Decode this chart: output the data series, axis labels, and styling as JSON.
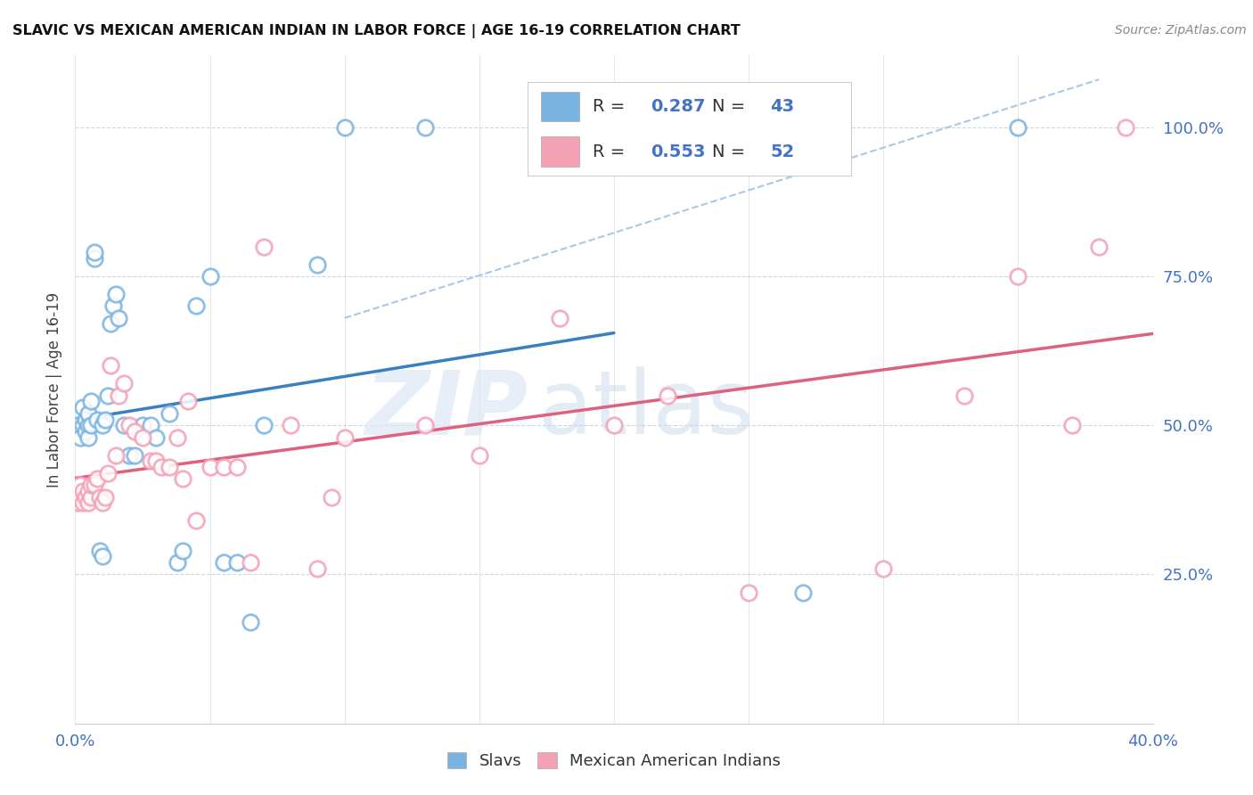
{
  "title": "SLAVIC VS MEXICAN AMERICAN INDIAN IN LABOR FORCE | AGE 16-19 CORRELATION CHART",
  "source": "Source: ZipAtlas.com",
  "ylabel": "In Labor Force | Age 16-19",
  "slavs_color": "#7ab3e0",
  "mexican_color": "#f4a0b5",
  "slavs_line_color": "#3a7fc1",
  "mexican_line_color": "#e06080",
  "ref_line_color": "#a8c8e8",
  "slavs_R": 0.287,
  "slavs_N": 43,
  "mexican_R": 0.553,
  "mexican_N": 52,
  "watermark_zip": "ZIP",
  "watermark_atlas": "atlas",
  "xlim": [
    0.0,
    0.4
  ],
  "ylim": [
    0.0,
    1.12
  ],
  "ytick_vals": [
    0.25,
    0.5,
    0.75,
    1.0
  ],
  "ytick_labels": [
    "25.0%",
    "50.0%",
    "75.0%",
    "100.0%"
  ],
  "xtick_vals": [
    0.0,
    0.4
  ],
  "xtick_labels": [
    "0.0%",
    "40.0%"
  ],
  "slavs_x": [
    0.001,
    0.002,
    0.003,
    0.003,
    0.004,
    0.004,
    0.005,
    0.005,
    0.005,
    0.006,
    0.006,
    0.007,
    0.007,
    0.008,
    0.009,
    0.01,
    0.01,
    0.011,
    0.012,
    0.013,
    0.014,
    0.015,
    0.016,
    0.018,
    0.02,
    0.022,
    0.025,
    0.028,
    0.03,
    0.035,
    0.038,
    0.04,
    0.045,
    0.05,
    0.055,
    0.06,
    0.065,
    0.07,
    0.09,
    0.1,
    0.13,
    0.27,
    0.35
  ],
  "slavs_y": [
    0.5,
    0.48,
    0.5,
    0.53,
    0.49,
    0.51,
    0.5,
    0.52,
    0.48,
    0.5,
    0.54,
    0.78,
    0.79,
    0.51,
    0.29,
    0.5,
    0.28,
    0.51,
    0.55,
    0.67,
    0.7,
    0.72,
    0.68,
    0.5,
    0.45,
    0.45,
    0.5,
    0.5,
    0.48,
    0.52,
    0.27,
    0.29,
    0.7,
    0.75,
    0.27,
    0.27,
    0.17,
    0.5,
    0.77,
    1.0,
    1.0,
    0.22,
    1.0
  ],
  "mexican_x": [
    0.001,
    0.002,
    0.002,
    0.003,
    0.003,
    0.004,
    0.005,
    0.005,
    0.006,
    0.006,
    0.007,
    0.008,
    0.009,
    0.01,
    0.011,
    0.012,
    0.013,
    0.015,
    0.016,
    0.018,
    0.02,
    0.022,
    0.025,
    0.028,
    0.03,
    0.032,
    0.035,
    0.038,
    0.04,
    0.042,
    0.045,
    0.05,
    0.055,
    0.06,
    0.065,
    0.07,
    0.08,
    0.09,
    0.095,
    0.1,
    0.13,
    0.15,
    0.18,
    0.2,
    0.22,
    0.25,
    0.3,
    0.33,
    0.35,
    0.37,
    0.38,
    0.39
  ],
  "mexican_y": [
    0.37,
    0.38,
    0.4,
    0.37,
    0.39,
    0.38,
    0.37,
    0.39,
    0.38,
    0.4,
    0.4,
    0.41,
    0.38,
    0.37,
    0.38,
    0.42,
    0.6,
    0.45,
    0.55,
    0.57,
    0.5,
    0.49,
    0.48,
    0.44,
    0.44,
    0.43,
    0.43,
    0.48,
    0.41,
    0.54,
    0.34,
    0.43,
    0.43,
    0.43,
    0.27,
    0.8,
    0.5,
    0.26,
    0.38,
    0.48,
    0.5,
    0.45,
    0.68,
    0.5,
    0.55,
    0.22,
    0.26,
    0.55,
    0.75,
    0.5,
    0.8,
    1.0
  ]
}
